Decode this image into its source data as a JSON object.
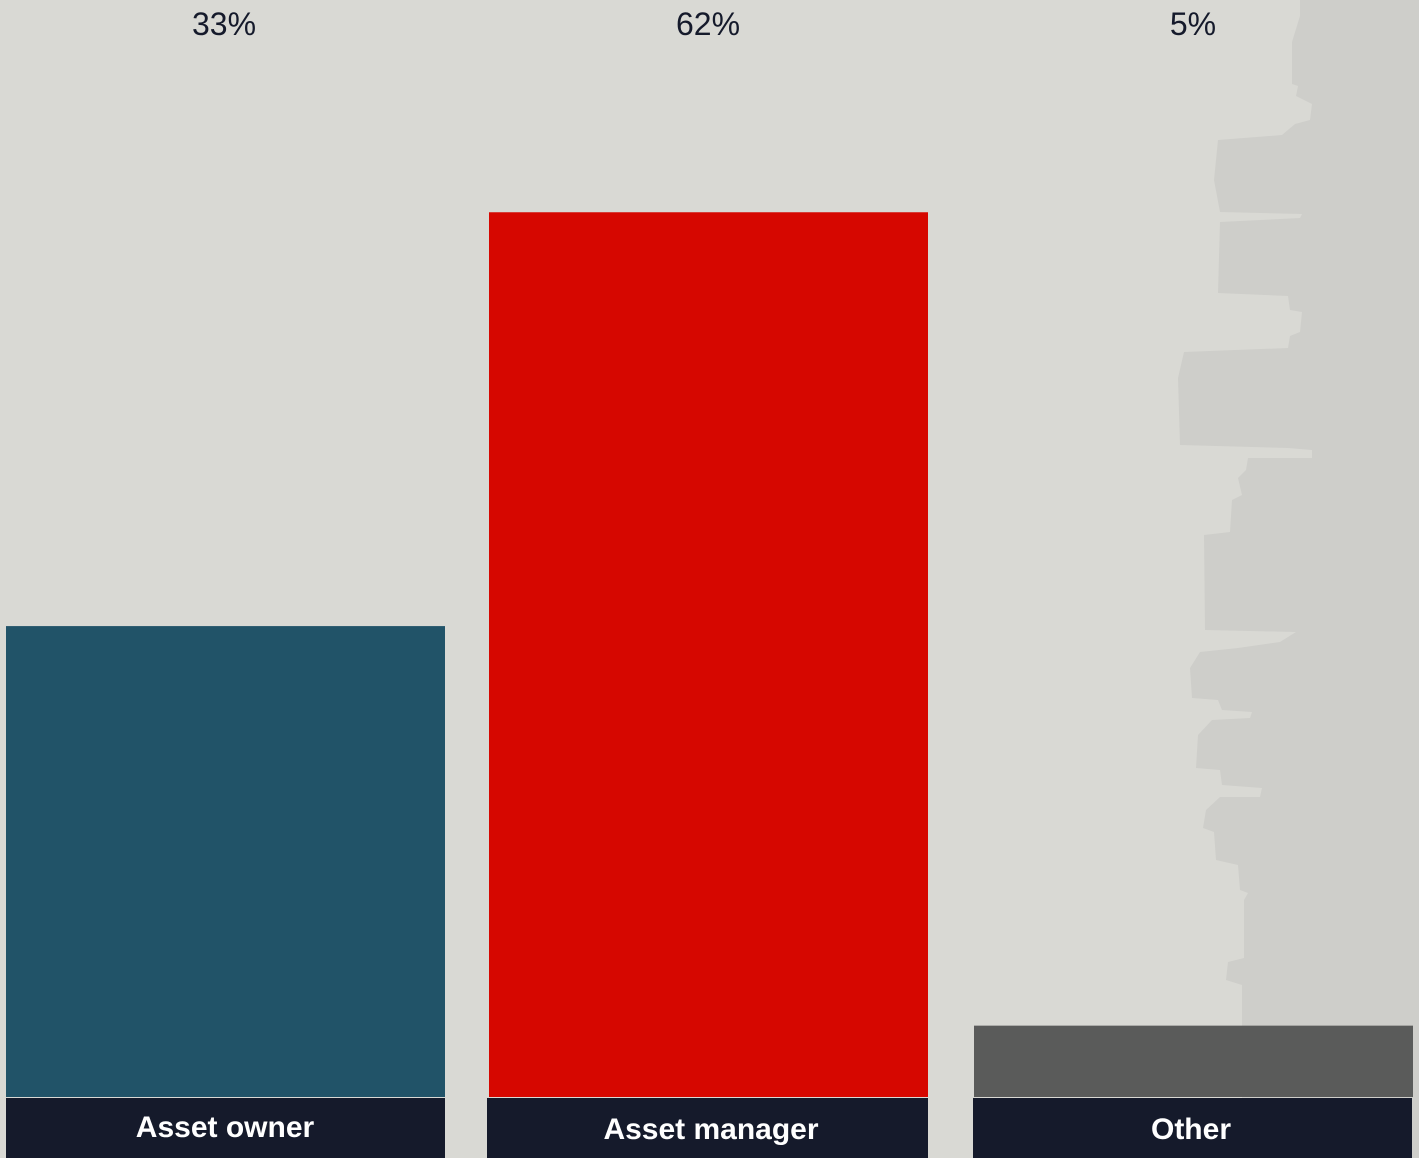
{
  "chart_data": {
    "type": "bar",
    "categories": [
      "Asset owner",
      "Asset manager",
      "Other"
    ],
    "values": [
      33,
      62,
      5
    ],
    "value_labels": [
      "33%",
      "62%",
      "5%"
    ],
    "ylim": [
      0,
      70
    ],
    "grid": false,
    "colors": [
      "#215368",
      "#d60700",
      "#5a5b5a"
    ],
    "label_band_color": "#151a2b",
    "background_color": "#d9d9d4",
    "decoration_color": "#cececa"
  }
}
